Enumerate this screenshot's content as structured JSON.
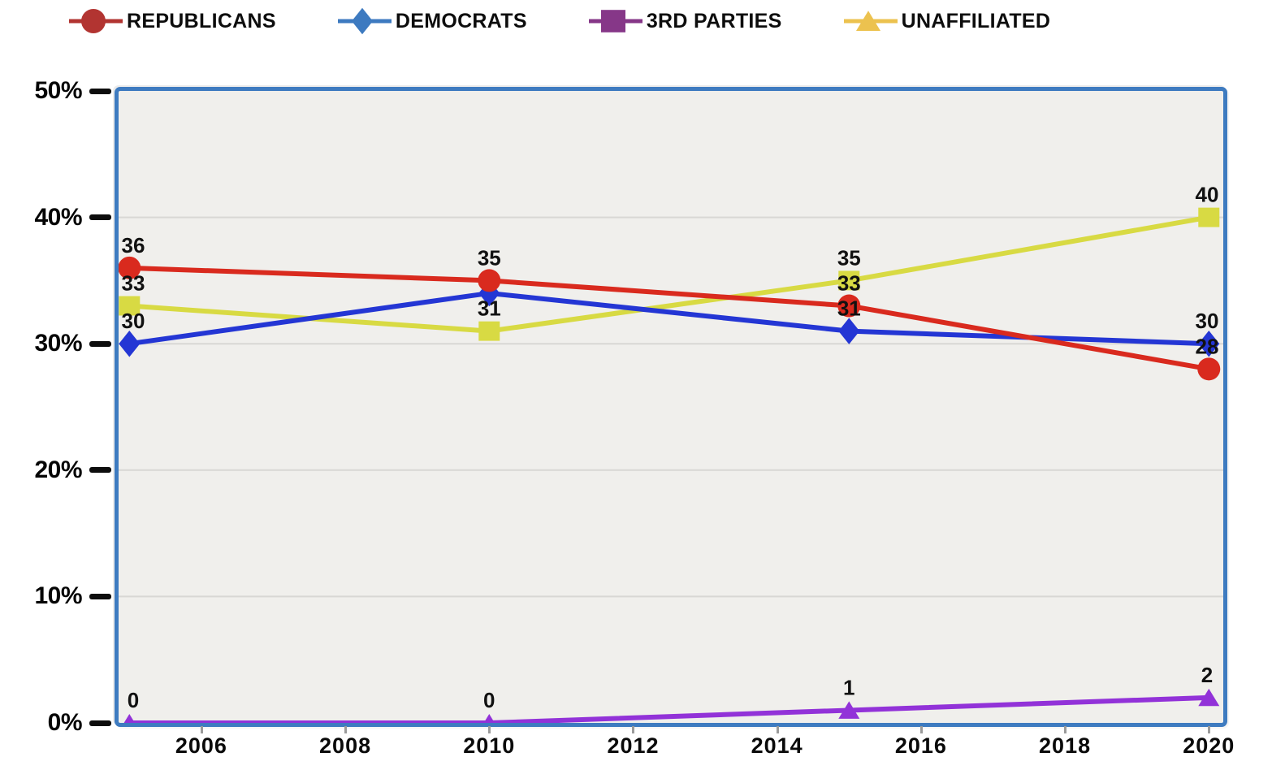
{
  "legend": {
    "items": [
      {
        "label": "REPUBLICANS",
        "marker": "circle",
        "color": "#b23431"
      },
      {
        "label": "DEMOCRATS",
        "marker": "diamond",
        "color": "#3d7ac0"
      },
      {
        "label": "3RD PARTIES",
        "marker": "square",
        "color": "#863788"
      },
      {
        "label": "UNAFFILIATED",
        "marker": "triangle",
        "color": "#ecc24f"
      }
    ]
  },
  "chart_data": {
    "type": "line",
    "title": "",
    "xlabel": "",
    "ylabel": "",
    "x": [
      2005,
      2010,
      2015,
      2020
    ],
    "xlim": [
      2004.85,
      2020.2
    ],
    "ylim": [
      0,
      50
    ],
    "x_tick_values": [
      2006,
      2008,
      2010,
      2012,
      2014,
      2016,
      2018,
      2020
    ],
    "x_tick_labels": [
      "2006",
      "2008",
      "2010",
      "2012",
      "2014",
      "2016",
      "2018",
      "2020"
    ],
    "y_tick_values": [
      0,
      10,
      20,
      30,
      40,
      50
    ],
    "y_tick_labels": [
      "0%",
      "10%",
      "20%",
      "30%",
      "40%",
      "50%"
    ],
    "grid": "horizontal-only",
    "legend_position": "top",
    "series": [
      {
        "name": "REPUBLICANS",
        "marker": "circle",
        "color": "#d92a1e",
        "values": [
          36,
          35,
          33,
          28
        ],
        "point_labels": [
          "36",
          "35",
          "33",
          "28"
        ]
      },
      {
        "name": "DEMOCRATS",
        "marker": "diamond",
        "color": "#2436d4",
        "values": [
          30,
          34,
          31,
          30
        ],
        "point_labels": [
          "30",
          "",
          "31",
          "30"
        ]
      },
      {
        "name": "3RD PARTIES",
        "marker": "triangle",
        "color": "#9232d8",
        "values": [
          0,
          0,
          1,
          2
        ],
        "point_labels": [
          "0",
          "0",
          "1",
          "2"
        ]
      },
      {
        "name": "UNAFFILIATED",
        "marker": "square",
        "color": "#d8da43",
        "values": [
          33,
          31,
          35,
          40
        ],
        "point_labels": [
          "33",
          "31",
          "35",
          "40"
        ]
      }
    ],
    "style": {
      "plot_border_color": "#3e7bc0",
      "plot_bg": "#f0efec",
      "grid_color": "#d8d7d4",
      "data_label_color": "#111111",
      "axis_label_color": "#050505",
      "tick_mark_color": "#9b9b9b"
    }
  }
}
